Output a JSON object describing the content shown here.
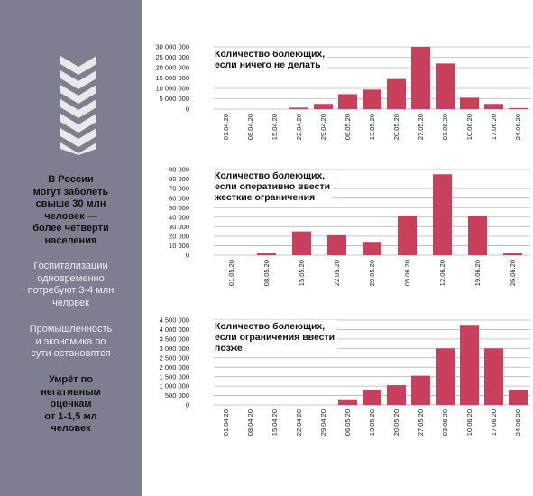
{
  "sidebar": {
    "headline": "В России\nмогут заболеть\nсвыше 30 млн\nчеловек —\nболее четверти\nнаселения",
    "hospital": "Госпитализации\nодновременно\nпотребуют 3-4 млн\nчеловек",
    "economy": "Промышленность\nи экономика по\nсути остановятся",
    "deaths": "Умрёт по\nнегативным\nоценкам\nот 1-1,5 мл\nчеловек"
  },
  "colors": {
    "bar": "#c8405c",
    "sidebar": "#7d7e8f",
    "chevron": "#e9e9ec",
    "grid": "#b8b8b8"
  },
  "chart_data": [
    {
      "type": "bar",
      "title_lines": [
        "Количество болеющих,",
        "если ничего не делать"
      ],
      "categories": [
        "01.04.20",
        "08.04.20",
        "15.04.20",
        "22.04.20",
        "29.04.20",
        "06.05.20",
        "13.05.20",
        "20.05.20",
        "27.05.20",
        "03.06.20",
        "10.06.20",
        "17.06.20",
        "24.06.20"
      ],
      "values": [
        0,
        0,
        0,
        700000,
        2500000,
        7200000,
        9400000,
        14500000,
        30000000,
        22000000,
        5500000,
        2500000,
        500000
      ],
      "yticks": [
        0,
        5000000,
        10000000,
        15000000,
        20000000,
        25000000,
        30000000
      ],
      "ytick_labels": [
        "0",
        "5 000 000",
        "10 000 000",
        "15 000 000",
        "20 000 000",
        "25 000 000",
        "30 000 000"
      ],
      "ylim": [
        0,
        30000000
      ],
      "grid": true
    },
    {
      "type": "bar",
      "title_lines": [
        "Количество болеющих,",
        "если оперативно ввести",
        "жесткие ограничения"
      ],
      "categories": [
        "01.05.20",
        "08.05.20",
        "15.05.20",
        "22.05.20",
        "29.05.20",
        "05.06.20",
        "12.06.20",
        "19.06.20",
        "26.06.20"
      ],
      "values": [
        0,
        2500,
        25000,
        21000,
        14000,
        41000,
        85000,
        41000,
        2500
      ],
      "yticks": [
        0,
        10000,
        20000,
        30000,
        40000,
        50000,
        60000,
        70000,
        80000,
        90000
      ],
      "ytick_labels": [
        "0",
        "10 000",
        "20 000",
        "30 000",
        "40 000",
        "50 000",
        "60 000",
        "70 000",
        "80 000",
        "90 000"
      ],
      "ylim": [
        0,
        90000
      ],
      "grid": true
    },
    {
      "type": "bar",
      "title_lines": [
        "Количество болеющих,",
        "если ограничения ввести",
        "позже"
      ],
      "categories": [
        "01.04.20",
        "08.04.20",
        "15.04.20",
        "22.04.20",
        "29.04.20",
        "06.05.20",
        "13.05.20",
        "20.05.20",
        "27.05.20",
        "03.06.20",
        "10.06.20",
        "17.06.20",
        "24.06.20"
      ],
      "values": [
        0,
        0,
        0,
        0,
        0,
        300000,
        800000,
        1050000,
        1550000,
        3000000,
        4250000,
        3000000,
        800000
      ],
      "yticks": [
        0,
        500000,
        1000000,
        1500000,
        2000000,
        2500000,
        3000000,
        3500000,
        4000000,
        4500000
      ],
      "ytick_labels": [
        "0",
        "500 000",
        "1 000 000",
        "1 500 000",
        "2 000 000",
        "2 500 000",
        "3 000 000",
        "3 500 000",
        "4 000 000",
        "4 500 000"
      ],
      "ylim": [
        0,
        4500000
      ],
      "grid": true
    }
  ]
}
